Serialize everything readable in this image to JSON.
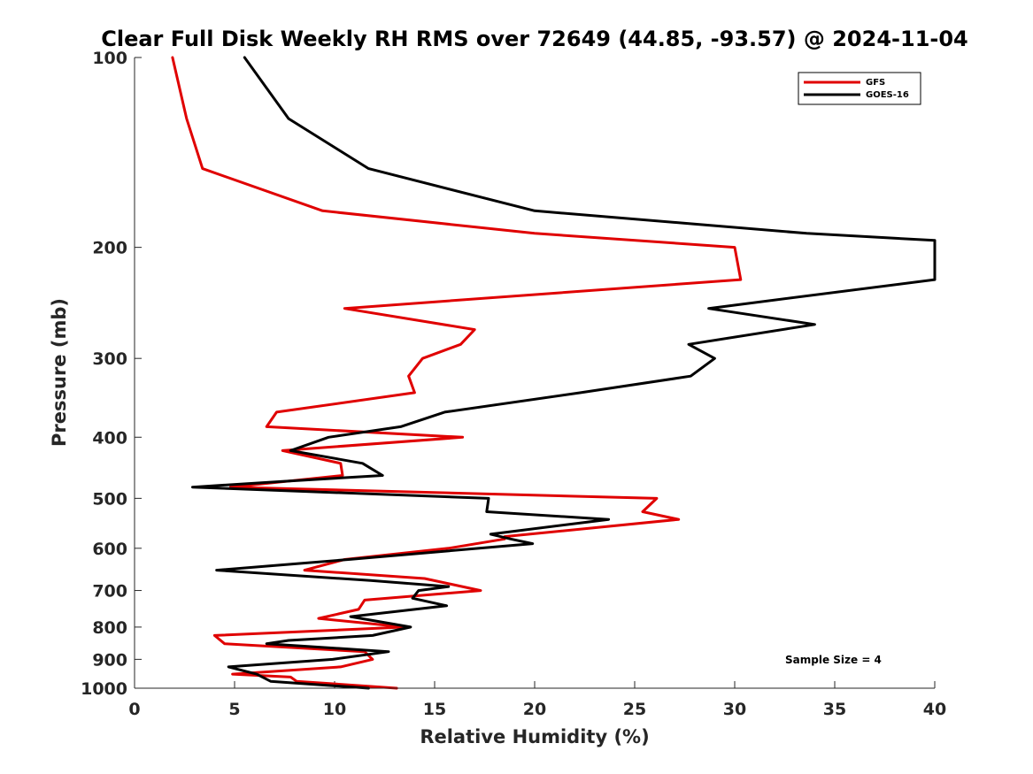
{
  "chart_data": {
    "type": "line",
    "title": "Clear Full Disk Weekly RH RMS over 72649 (44.85, -93.57) @ 2024-11-04",
    "xlabel": "Relative Humidity (%)",
    "ylabel": "Pressure (mb)",
    "xlim": [
      0,
      40
    ],
    "ylim": [
      100,
      1000
    ],
    "yscale": "log",
    "y_reversed": true,
    "xticks": [
      0,
      5,
      10,
      15,
      20,
      25,
      30,
      35,
      40
    ],
    "yticks": [
      100,
      200,
      300,
      400,
      500,
      600,
      700,
      800,
      900,
      1000
    ],
    "grid": false,
    "legend_position": "top-right",
    "annotation": "Sample Size = 4",
    "series": [
      {
        "name": "GFS",
        "color": "#e00000",
        "points": [
          [
            1.9,
            100
          ],
          [
            2.6,
            125
          ],
          [
            3.4,
            150
          ],
          [
            9.4,
            175
          ],
          [
            20,
            190
          ],
          [
            30.0,
            200
          ],
          [
            30.3,
            225
          ],
          [
            10.5,
            250
          ],
          [
            17.0,
            270
          ],
          [
            16.3,
            285
          ],
          [
            14.4,
            300
          ],
          [
            13.7,
            320
          ],
          [
            14.0,
            340
          ],
          [
            7.1,
            365
          ],
          [
            6.6,
            385
          ],
          [
            16.4,
            400
          ],
          [
            7.4,
            420
          ],
          [
            10.3,
            440
          ],
          [
            10.4,
            460
          ],
          [
            4.8,
            480
          ],
          [
            26.1,
            500
          ],
          [
            25.4,
            525
          ],
          [
            27.2,
            540
          ],
          [
            18.5,
            575
          ],
          [
            18.5,
            580
          ],
          [
            15.7,
            600
          ],
          [
            10.5,
            625
          ],
          [
            8.5,
            650
          ],
          [
            14.5,
            670
          ],
          [
            17.3,
            700
          ],
          [
            11.5,
            725
          ],
          [
            11.2,
            750
          ],
          [
            9.2,
            775
          ],
          [
            13.5,
            800
          ],
          [
            4.0,
            825
          ],
          [
            4.5,
            850
          ],
          [
            11.5,
            875
          ],
          [
            11.9,
            900
          ],
          [
            10.3,
            925
          ],
          [
            4.9,
            950
          ],
          [
            7.8,
            960
          ],
          [
            8.1,
            975
          ],
          [
            13.1,
            1000
          ]
        ]
      },
      {
        "name": "GOES-16",
        "color": "#000000",
        "points": [
          [
            5.5,
            100
          ],
          [
            7.7,
            125
          ],
          [
            11.7,
            150
          ],
          [
            20.0,
            175
          ],
          [
            33.6,
            190
          ],
          [
            40.0,
            195
          ],
          [
            40.0,
            225
          ],
          [
            28.7,
            250
          ],
          [
            34.0,
            265
          ],
          [
            27.7,
            285
          ],
          [
            29.0,
            300
          ],
          [
            27.8,
            320
          ],
          [
            22.3,
            340
          ],
          [
            15.5,
            365
          ],
          [
            13.3,
            385
          ],
          [
            9.7,
            400
          ],
          [
            7.8,
            420
          ],
          [
            11.4,
            440
          ],
          [
            12.4,
            460
          ],
          [
            7.4,
            470
          ],
          [
            2.9,
            480
          ],
          [
            17.7,
            500
          ],
          [
            17.6,
            525
          ],
          [
            23.7,
            540
          ],
          [
            17.8,
            570
          ],
          [
            18.8,
            580
          ],
          [
            19.9,
            590
          ],
          [
            10.7,
            625
          ],
          [
            4.1,
            650
          ],
          [
            11.8,
            675
          ],
          [
            15.7,
            690
          ],
          [
            14.2,
            700
          ],
          [
            13.9,
            720
          ],
          [
            15.6,
            740
          ],
          [
            10.8,
            770
          ],
          [
            13.8,
            800
          ],
          [
            11.9,
            825
          ],
          [
            7.7,
            840
          ],
          [
            6.6,
            850
          ],
          [
            12.7,
            875
          ],
          [
            9.9,
            900
          ],
          [
            4.7,
            925
          ],
          [
            6.1,
            950
          ],
          [
            6.8,
            975
          ],
          [
            11.7,
            1000
          ]
        ]
      }
    ]
  }
}
